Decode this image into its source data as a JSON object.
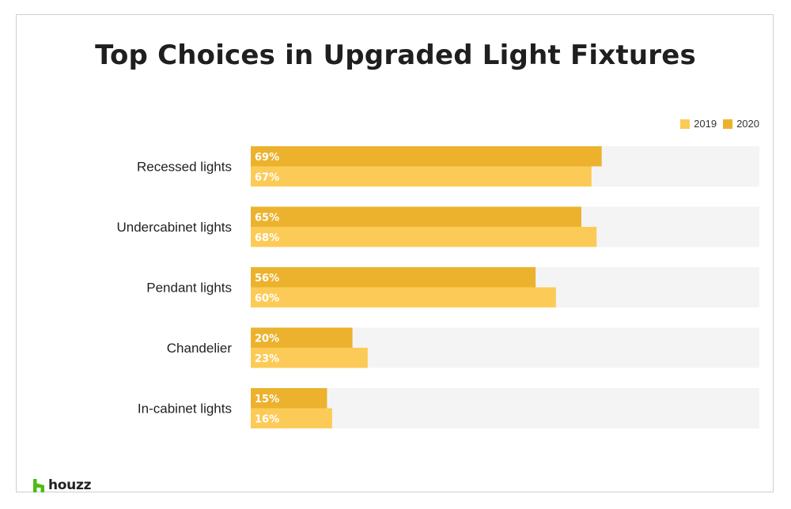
{
  "chart_data": {
    "type": "bar",
    "orientation": "horizontal",
    "title": "Top Choices in Upgraded Light Fixtures",
    "categories": [
      "Recessed lights",
      "Undercabinet lights",
      "Pendant lights",
      "Chandelier",
      "In-cabinet lights"
    ],
    "series": [
      {
        "name": "2020",
        "color": "#ecb22e",
        "values": [
          69,
          65,
          56,
          20,
          15
        ],
        "labels": [
          "69%",
          "65%",
          "56%",
          "20%",
          "15%"
        ]
      },
      {
        "name": "2019",
        "color": "#fccb57",
        "values": [
          67,
          68,
          60,
          23,
          16
        ],
        "labels": [
          "67%",
          "68%",
          "60%",
          "23%",
          "16%"
        ]
      }
    ],
    "xlim": [
      0,
      100
    ],
    "value_suffix": "%",
    "legend_position": "top-right",
    "grid": false,
    "track_color": "#f4f4f4"
  },
  "legend": {
    "items": [
      {
        "label": "2019",
        "color": "#fccb57"
      },
      {
        "label": "2020",
        "color": "#ecb22e"
      }
    ]
  },
  "brand": {
    "name": "houzz",
    "color": "#4dbc15",
    "icon": "houzz-h-icon"
  }
}
